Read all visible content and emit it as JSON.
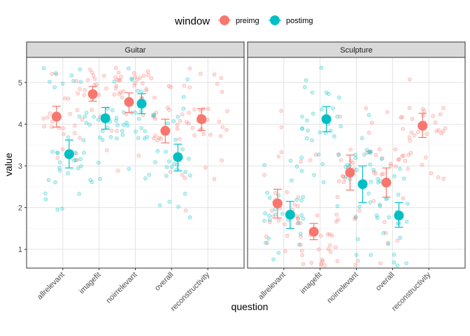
{
  "chart_data": {
    "type": "scatter",
    "subtype": "faceted jittered points with mean and error bars",
    "legend": {
      "title": "window",
      "position": "top",
      "entries": [
        {
          "key": "preimg",
          "label": "preimg",
          "color": "#F8766D"
        },
        {
          "key": "postimg",
          "label": "postimg",
          "color": "#00BFC4"
        }
      ]
    },
    "xlabel": "question",
    "ylabel": "value",
    "categories": [
      "allrelevant",
      "imagefit",
      "noirrelevant",
      "overall",
      "reconstructivity"
    ],
    "y_ticks": [
      1,
      2,
      3,
      4,
      5
    ],
    "ylim": [
      0.55,
      5.6
    ],
    "grid": true,
    "facets": [
      {
        "title": "Guitar",
        "series": [
          {
            "name": "preimg",
            "means": [
              4.18,
              4.72,
              4.53,
              3.84,
              4.12
            ],
            "lower": [
              3.93,
              4.55,
              4.28,
              3.55,
              3.85
            ],
            "upper": [
              4.43,
              4.9,
              4.75,
              4.12,
              4.37
            ]
          },
          {
            "name": "postimg",
            "means": [
              3.28,
              4.14,
              4.49,
              3.21,
              null
            ],
            "lower": [
              2.95,
              3.88,
              4.25,
              2.88,
              null
            ],
            "upper": [
              3.62,
              4.4,
              4.73,
              3.52,
              null
            ]
          }
        ]
      },
      {
        "title": "Sculpture",
        "series": [
          {
            "name": "preimg",
            "means": [
              2.1,
              1.42,
              2.84,
              2.6,
              3.96
            ],
            "lower": [
              1.75,
              1.23,
              2.42,
              2.25,
              3.68
            ],
            "upper": [
              2.44,
              1.62,
              3.26,
              2.95,
              4.26
            ]
          },
          {
            "name": "postimg",
            "means": [
              1.83,
              4.12,
              2.56,
              1.81,
              null
            ],
            "lower": [
              1.5,
              3.82,
              2.12,
              1.53,
              null
            ],
            "upper": [
              2.15,
              4.42,
              3.0,
              2.12,
              null
            ]
          }
        ]
      }
    ]
  }
}
